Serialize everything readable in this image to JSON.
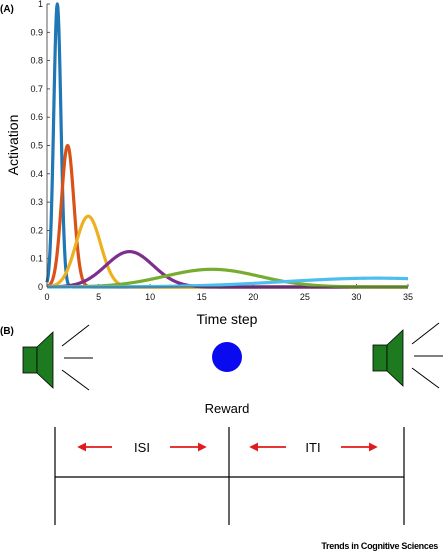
{
  "panel_a_label": "(A)",
  "panel_b_label": "(B)",
  "chart_data": {
    "type": "line",
    "title": "",
    "xlabel": "Time step",
    "ylabel": "Activation",
    "xlim": [
      0,
      35
    ],
    "ylim": [
      0,
      1
    ],
    "xticks": [
      0,
      5,
      10,
      15,
      20,
      25,
      30,
      35
    ],
    "yticks": [
      0,
      0.1,
      0.2,
      0.3,
      0.4,
      0.5,
      0.6,
      0.7,
      0.8,
      0.9,
      1
    ],
    "ytick_labels": [
      "0",
      "0.1",
      "0.2",
      "0.3",
      "0.4",
      "0.5",
      "0.6",
      "0.7",
      "0.8",
      "0.9",
      "1"
    ],
    "grid": false,
    "series": [
      {
        "color": "#1f77b4",
        "peak_x": 1,
        "peak_y": 1.0,
        "width": 0.35
      },
      {
        "color": "#d95319",
        "peak_x": 2,
        "peak_y": 0.5,
        "width": 0.6
      },
      {
        "color": "#edb120",
        "peak_x": 4,
        "peak_y": 0.25,
        "width": 1.2
      },
      {
        "color": "#7e2f8e",
        "peak_x": 8,
        "peak_y": 0.125,
        "width": 2.3
      },
      {
        "color": "#77ac30",
        "peak_x": 16,
        "peak_y": 0.0625,
        "width": 4.6
      },
      {
        "color": "#4dbeee",
        "peak_x": 32,
        "peak_y": 0.03125,
        "width": 9.0
      }
    ]
  },
  "schematic": {
    "reward_label": "Reward",
    "isi_label": "ISI",
    "iti_label": "ITI",
    "speaker_color": "#1e7a1e",
    "reward_color": "#0a0af0",
    "arrow_color": "#e31a1c"
  },
  "footer": {
    "credit": "Trends in Cognitive Sciences"
  }
}
